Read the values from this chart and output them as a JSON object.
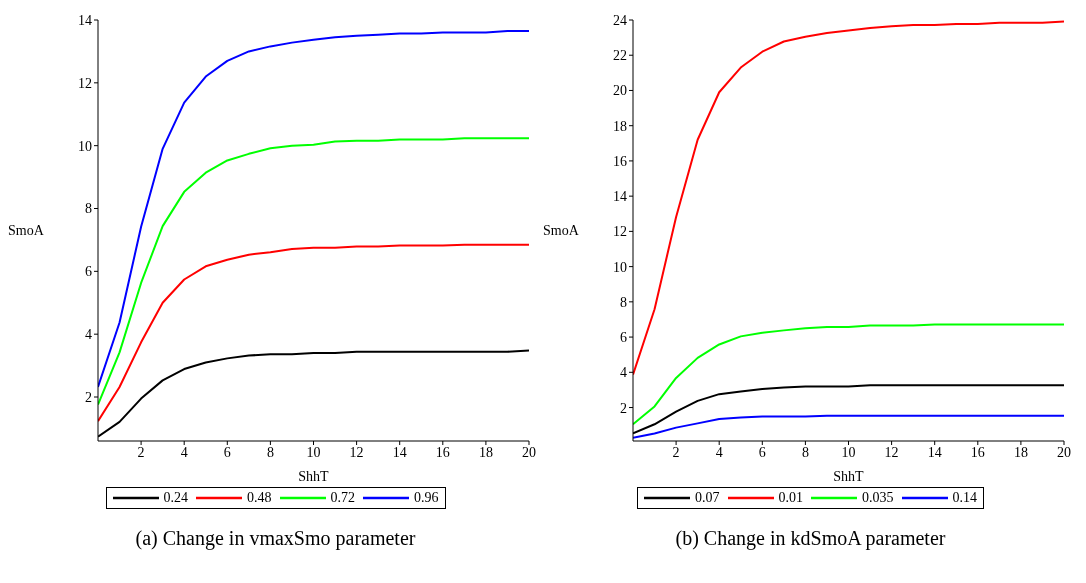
{
  "chart_data": [
    {
      "type": "line",
      "title": "(a) Change in vmaxSmo parameter",
      "xlabel": "ShhT",
      "ylabel": "SmoA",
      "x": [
        0,
        1,
        2,
        3,
        4,
        5,
        6,
        7,
        8,
        9,
        10,
        11,
        12,
        13,
        14,
        15,
        16,
        17,
        18,
        19,
        20
      ],
      "xlim": [
        0,
        20
      ],
      "xticks": [
        2,
        4,
        6,
        8,
        10,
        12,
        14,
        16,
        18,
        20
      ],
      "ylim": [
        0.6,
        14
      ],
      "yticks": [
        2,
        4,
        6,
        8,
        10,
        12,
        14
      ],
      "legend": "bottom",
      "marker": "none",
      "line_style": "solid",
      "series": [
        {
          "name": "0.24",
          "color": "#000000",
          "values": [
            0.74,
            1.21,
            1.95,
            2.53,
            2.89,
            3.1,
            3.23,
            3.32,
            3.36,
            3.36,
            3.4,
            3.4,
            3.44,
            3.44,
            3.44,
            3.44,
            3.44,
            3.44,
            3.44,
            3.44,
            3.48
          ]
        },
        {
          "name": "0.48",
          "color": "#ff0000",
          "values": [
            1.23,
            2.32,
            3.74,
            5.0,
            5.74,
            6.16,
            6.37,
            6.53,
            6.61,
            6.71,
            6.75,
            6.75,
            6.79,
            6.79,
            6.82,
            6.82,
            6.82,
            6.85,
            6.85,
            6.85,
            6.85
          ]
        },
        {
          "name": "0.72",
          "color": "#00ff00",
          "values": [
            1.76,
            3.42,
            5.63,
            7.44,
            8.53,
            9.14,
            9.53,
            9.74,
            9.92,
            10.0,
            10.03,
            10.13,
            10.16,
            10.16,
            10.2,
            10.2,
            10.2,
            10.24,
            10.24,
            10.24,
            10.24
          ]
        },
        {
          "name": "0.96",
          "color": "#0000ff",
          "values": [
            2.32,
            4.37,
            7.42,
            9.9,
            11.37,
            12.2,
            12.7,
            13.0,
            13.16,
            13.28,
            13.37,
            13.45,
            13.5,
            13.53,
            13.57,
            13.57,
            13.6,
            13.6,
            13.6,
            13.65,
            13.65
          ]
        }
      ]
    },
    {
      "type": "line",
      "title": "(b) Change in kdSmoA parameter",
      "xlabel": "ShhT",
      "ylabel": "SmoA",
      "x": [
        0,
        1,
        2,
        3,
        4,
        5,
        6,
        7,
        8,
        9,
        10,
        11,
        12,
        13,
        14,
        15,
        16,
        17,
        18,
        19,
        20
      ],
      "xlim": [
        0,
        20
      ],
      "xticks": [
        2,
        4,
        6,
        8,
        10,
        12,
        14,
        16,
        18,
        20
      ],
      "ylim": [
        0.1,
        24
      ],
      "yticks": [
        2,
        4,
        6,
        8,
        10,
        12,
        14,
        16,
        18,
        20,
        22,
        24
      ],
      "legend": "bottom",
      "marker": "none",
      "line_style": "solid",
      "series": [
        {
          "name": "0.07",
          "color": "#000000",
          "values": [
            0.53,
            1.05,
            1.77,
            2.38,
            2.76,
            2.91,
            3.05,
            3.14,
            3.2,
            3.2,
            3.2,
            3.26,
            3.26,
            3.26,
            3.26,
            3.26,
            3.26,
            3.26,
            3.26,
            3.26,
            3.26
          ]
        },
        {
          "name": "0.01",
          "color": "#ff0000",
          "values": [
            3.87,
            7.58,
            12.82,
            17.2,
            19.9,
            21.3,
            22.2,
            22.78,
            23.05,
            23.26,
            23.4,
            23.54,
            23.64,
            23.71,
            23.71,
            23.77,
            23.77,
            23.85,
            23.85,
            23.85,
            23.92
          ]
        },
        {
          "name": "0.035",
          "color": "#00ff00",
          "values": [
            1.05,
            2.06,
            3.68,
            4.82,
            5.58,
            6.04,
            6.25,
            6.38,
            6.5,
            6.57,
            6.57,
            6.65,
            6.65,
            6.65,
            6.72,
            6.72,
            6.72,
            6.72,
            6.72,
            6.72,
            6.72
          ]
        },
        {
          "name": "0.14",
          "color": "#0000ff",
          "values": [
            0.29,
            0.53,
            0.86,
            1.1,
            1.35,
            1.43,
            1.49,
            1.49,
            1.49,
            1.54,
            1.54,
            1.54,
            1.54,
            1.54,
            1.54,
            1.54,
            1.54,
            1.54,
            1.54,
            1.54,
            1.54
          ]
        }
      ]
    }
  ]
}
